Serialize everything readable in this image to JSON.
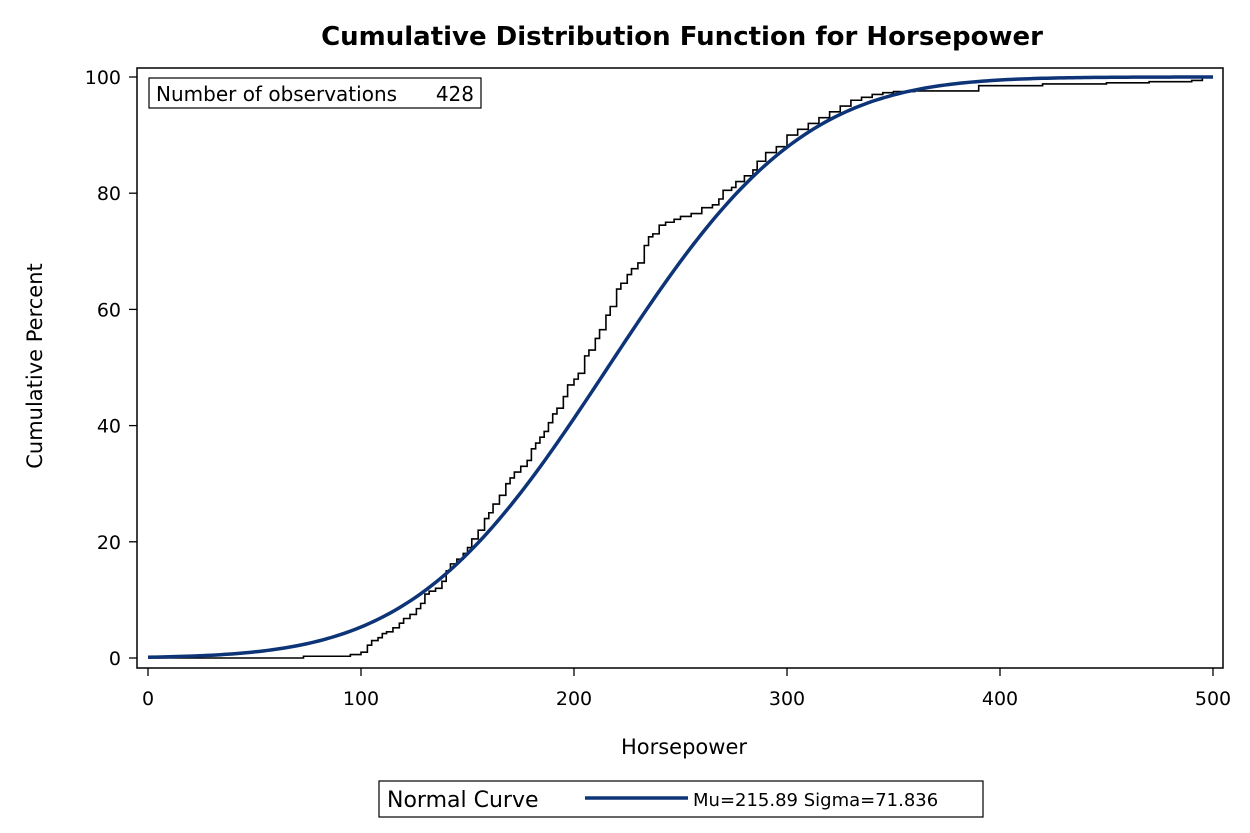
{
  "chart_data": {
    "type": "line",
    "title": "Cumulative Distribution Function for Horsepower",
    "xlabel": "Horsepower",
    "ylabel": "Cumulative Percent",
    "xlim": [
      0,
      500
    ],
    "ylim": [
      0,
      100
    ],
    "x_ticks": [
      0,
      100,
      200,
      300,
      400,
      500
    ],
    "y_ticks": [
      0,
      20,
      40,
      60,
      80,
      100
    ],
    "grid": false,
    "inset": {
      "label": "Number of observations",
      "value": "428"
    },
    "legend": {
      "position": "bottom",
      "title": "Normal Curve",
      "entry": "Mu=215.89 Sigma=71.836"
    },
    "normal_curve": {
      "mu": 215.89,
      "sigma": 71.836,
      "color": "#0e3478"
    },
    "empirical": {
      "color": "#000000",
      "x": [
        0,
        73,
        73,
        92,
        95,
        100,
        103,
        105,
        108,
        110,
        112,
        115,
        118,
        120,
        123,
        126,
        128,
        130,
        132,
        135,
        138,
        140,
        142,
        145,
        148,
        150,
        152,
        155,
        158,
        160,
        162,
        165,
        168,
        170,
        172,
        175,
        178,
        180,
        182,
        184,
        186,
        188,
        190,
        192,
        195,
        197,
        200,
        202,
        205,
        207,
        210,
        212,
        215,
        217,
        220,
        222,
        225,
        227,
        230,
        233,
        235,
        237,
        240,
        243,
        247,
        250,
        255,
        260,
        265,
        268,
        270,
        274,
        276,
        280,
        284,
        286,
        290,
        295,
        300,
        305,
        310,
        315,
        320,
        325,
        330,
        335,
        340,
        345,
        350,
        360,
        390,
        420,
        450,
        470,
        490,
        495,
        500
      ],
      "y": [
        0,
        0,
        0.3,
        0.3,
        0.6,
        1.0,
        2.2,
        3.0,
        3.5,
        4.2,
        4.5,
        5.2,
        6.0,
        6.8,
        7.5,
        8.5,
        9.4,
        11.0,
        11.5,
        12.0,
        13.2,
        15.0,
        16.2,
        17.0,
        18.0,
        19.0,
        20.5,
        22.0,
        24.0,
        25.0,
        26.5,
        28.0,
        30.0,
        31.0,
        32.0,
        33.0,
        34.0,
        36.0,
        37.0,
        38.0,
        39.0,
        40.5,
        42.0,
        43.0,
        45.0,
        47.0,
        48.0,
        49.0,
        52.0,
        53.0,
        55.0,
        56.5,
        59.0,
        60.5,
        63.5,
        64.5,
        66.0,
        67.0,
        68.0,
        71.0,
        72.5,
        73.0,
        74.5,
        75.0,
        75.5,
        76.0,
        76.5,
        77.5,
        78.0,
        79.0,
        80.5,
        81.0,
        82.0,
        83.0,
        84.0,
        85.5,
        87.0,
        88.0,
        90.0,
        91.0,
        92.0,
        93.0,
        94.0,
        95.0,
        96.0,
        96.5,
        97.0,
        97.3,
        97.5,
        97.6,
        98.5,
        98.8,
        99.0,
        99.2,
        99.4,
        100.0,
        100.0
      ]
    }
  }
}
